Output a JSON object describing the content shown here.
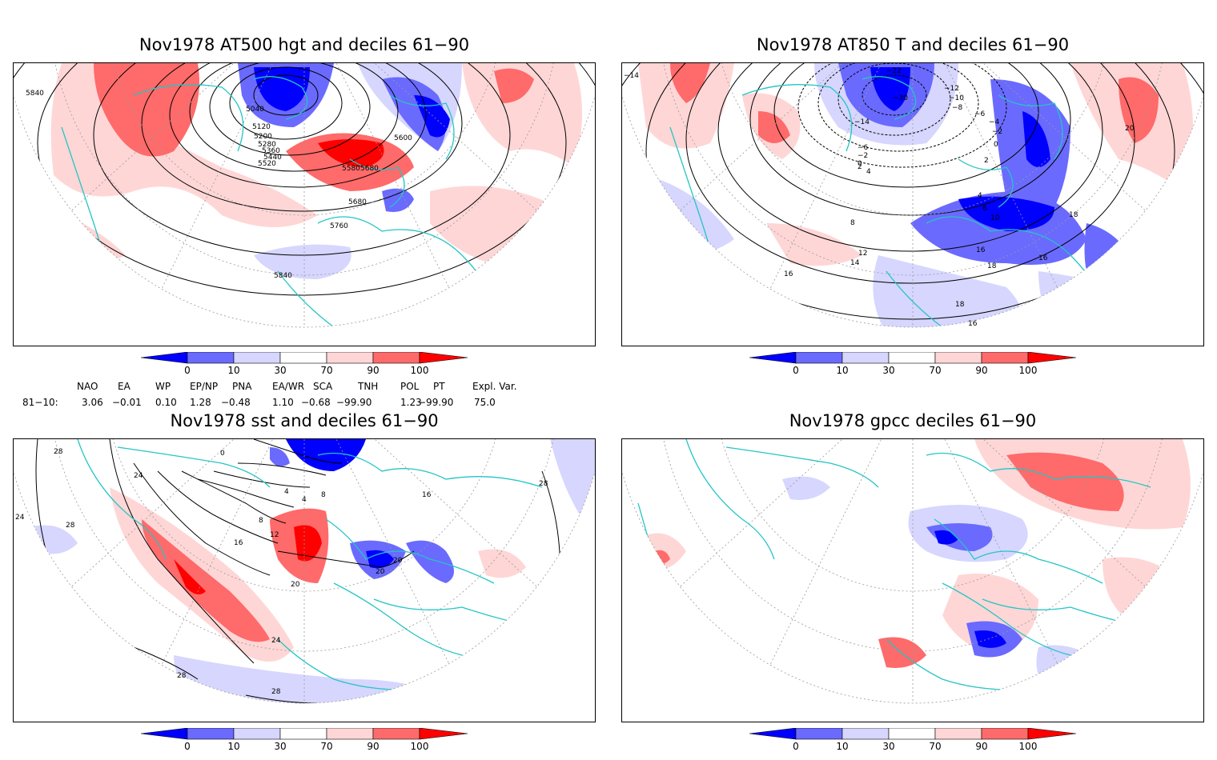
{
  "panels": [
    {
      "id": "p1",
      "title": "Nov1978 AT500 hgt and deciles 61−90",
      "contour_labels": [
        "5840",
        "5040",
        "5120",
        "5200",
        "5280",
        "5360",
        "5440",
        "5520",
        "5600",
        "5680",
        "5760",
        "5840",
        "5580",
        "5680"
      ]
    },
    {
      "id": "p2",
      "title": "Nov1978 AT850 T and deciles 61−90",
      "contour_labels": [
        "−14",
        "−30",
        "−22",
        "−14",
        "−12",
        "−10",
        "−8",
        "−6",
        "−4",
        "−2",
        "0",
        "2",
        "4",
        "6",
        "8",
        "10",
        "12",
        "14",
        "16",
        "18",
        "20",
        "16",
        "18",
        "16",
        "18",
        "16",
        "4",
        "−6",
        "−2",
        "0",
        "2"
      ]
    },
    {
      "id": "p3",
      "title": "Nov1978 sst and deciles 61−90",
      "contour_labels": [
        "28",
        "24",
        "24",
        "28",
        "0",
        "4",
        "4",
        "8",
        "8",
        "12",
        "16",
        "16",
        "20",
        "20",
        "20",
        "24",
        "28",
        "28",
        "28"
      ]
    },
    {
      "id": "p4",
      "title": "Nov1978 gpcc deciles 61−90",
      "contour_labels": []
    }
  ],
  "colorbar": {
    "labels": [
      "0",
      "10",
      "30",
      "70",
      "90",
      "100"
    ],
    "colors": {
      "dark_blue": "#0000ff",
      "mid_blue": "#6a6aff",
      "light_blue": "#d6d6ff",
      "white": "#ffffff",
      "light_red": "#ffd6d6",
      "mid_red": "#ff6a6a",
      "dark_red": "#ff0000"
    }
  },
  "indices": {
    "headers": [
      "NAO",
      "EA",
      "WP",
      "EP/NP",
      "PNA",
      "EA/WR",
      "SCA",
      "TNH",
      "POL",
      "PT",
      "Expl. Var."
    ],
    "row_label": "81−10:",
    "values": [
      "3.06",
      "−0.01",
      "0.10",
      "1.28",
      "−0.48",
      "1.10",
      "−0.68",
      "−99.90",
      "1.23",
      "−99.90",
      "75.0"
    ]
  },
  "map_colors": {
    "coast": "#25c5c5",
    "grid": "#999999",
    "contour": "#000000"
  }
}
